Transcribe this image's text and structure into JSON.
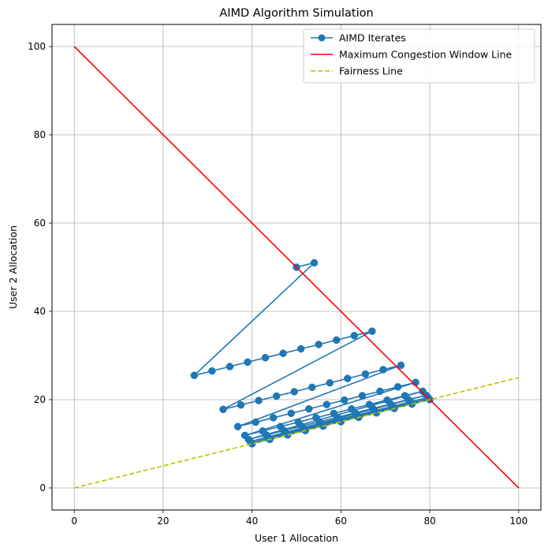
{
  "chart_data": {
    "type": "line",
    "title": "AIMD Algorithm Simulation",
    "xlabel": "User 1 Allocation",
    "ylabel": "User 2 Allocation",
    "xlim": [
      -5,
      105
    ],
    "ylim": [
      -5,
      105
    ],
    "xticks": [
      0,
      20,
      40,
      60,
      80,
      100
    ],
    "yticks": [
      0,
      20,
      40,
      60,
      80,
      100
    ],
    "xtick_labels": [
      "0",
      "20",
      "40",
      "60",
      "80",
      "100"
    ],
    "ytick_labels": [
      "0",
      "20",
      "40",
      "60",
      "80",
      "100"
    ],
    "grid": true,
    "legend_position": "top-right",
    "series": [
      {
        "name": "AIMD Iterates",
        "color": "#1f77b4",
        "style": "solid-with-circle-markers",
        "x": [
          50,
          54,
          27,
          31,
          35,
          39,
          43,
          47,
          51,
          55,
          59,
          63,
          67,
          33.5,
          37.5,
          41.5,
          45.5,
          49.5,
          53.5,
          57.5,
          61.5,
          65.5,
          69.5,
          73.5,
          36.8,
          40.8,
          44.8,
          48.8,
          52.8,
          56.8,
          60.8,
          64.8,
          68.8,
          72.8,
          76.8,
          38.4,
          42.4,
          46.4,
          50.4,
          54.4,
          58.4,
          62.4,
          66.4,
          70.4,
          74.4,
          78.4,
          39.2,
          43.2,
          47.2,
          51.2,
          55.2,
          59.2,
          63.2,
          67.2,
          71.2,
          75.2,
          79.2,
          39.6,
          43.6,
          47.6,
          51.6,
          55.6,
          59.6,
          63.6,
          67.6,
          71.6,
          75.6,
          79.6,
          39.8,
          43.8,
          47.8,
          51.8,
          55.8,
          59.8,
          63.8,
          67.8,
          71.8,
          75.8,
          79.8,
          39.9,
          43.9,
          47.9,
          51.9,
          55.9,
          59.9,
          63.9,
          67.9,
          71.9,
          75.9,
          79.9,
          40,
          44,
          48,
          52,
          56,
          60,
          64,
          68,
          72,
          76,
          80
        ],
        "y": [
          50,
          51,
          25.5,
          26.5,
          27.5,
          28.5,
          29.5,
          30.5,
          31.5,
          32.5,
          33.5,
          34.5,
          35.5,
          17.8,
          18.8,
          19.8,
          20.8,
          21.8,
          22.8,
          23.8,
          24.8,
          25.8,
          26.8,
          27.8,
          13.9,
          14.9,
          15.9,
          16.9,
          17.9,
          18.9,
          19.9,
          20.9,
          21.9,
          22.9,
          23.9,
          11.9,
          12.9,
          13.9,
          14.9,
          15.9,
          16.9,
          17.9,
          18.9,
          19.9,
          20.9,
          21.9,
          11,
          12,
          13,
          14,
          15,
          16,
          17,
          18,
          19,
          20,
          21,
          10.5,
          11.5,
          12.5,
          13.5,
          14.5,
          15.5,
          16.5,
          17.5,
          18.5,
          19.5,
          20.5,
          10.2,
          11.2,
          12.2,
          13.2,
          14.2,
          15.2,
          16.2,
          17.2,
          18.2,
          19.2,
          20.2,
          10.1,
          11.1,
          12.1,
          13.1,
          14.1,
          15.1,
          16.1,
          17.1,
          18.1,
          19.1,
          20.1,
          10,
          11,
          12,
          13,
          14,
          15,
          16,
          17,
          18,
          19,
          20
        ]
      },
      {
        "name": "Maximum Congestion Window Line",
        "color": "#ff0000",
        "style": "solid",
        "x": [
          0,
          100
        ],
        "y": [
          100,
          0
        ]
      },
      {
        "name": "Fairness Line",
        "color": "#bfbf00",
        "style": "dashed",
        "x": [
          0,
          100
        ],
        "y": [
          0,
          25
        ]
      }
    ]
  }
}
